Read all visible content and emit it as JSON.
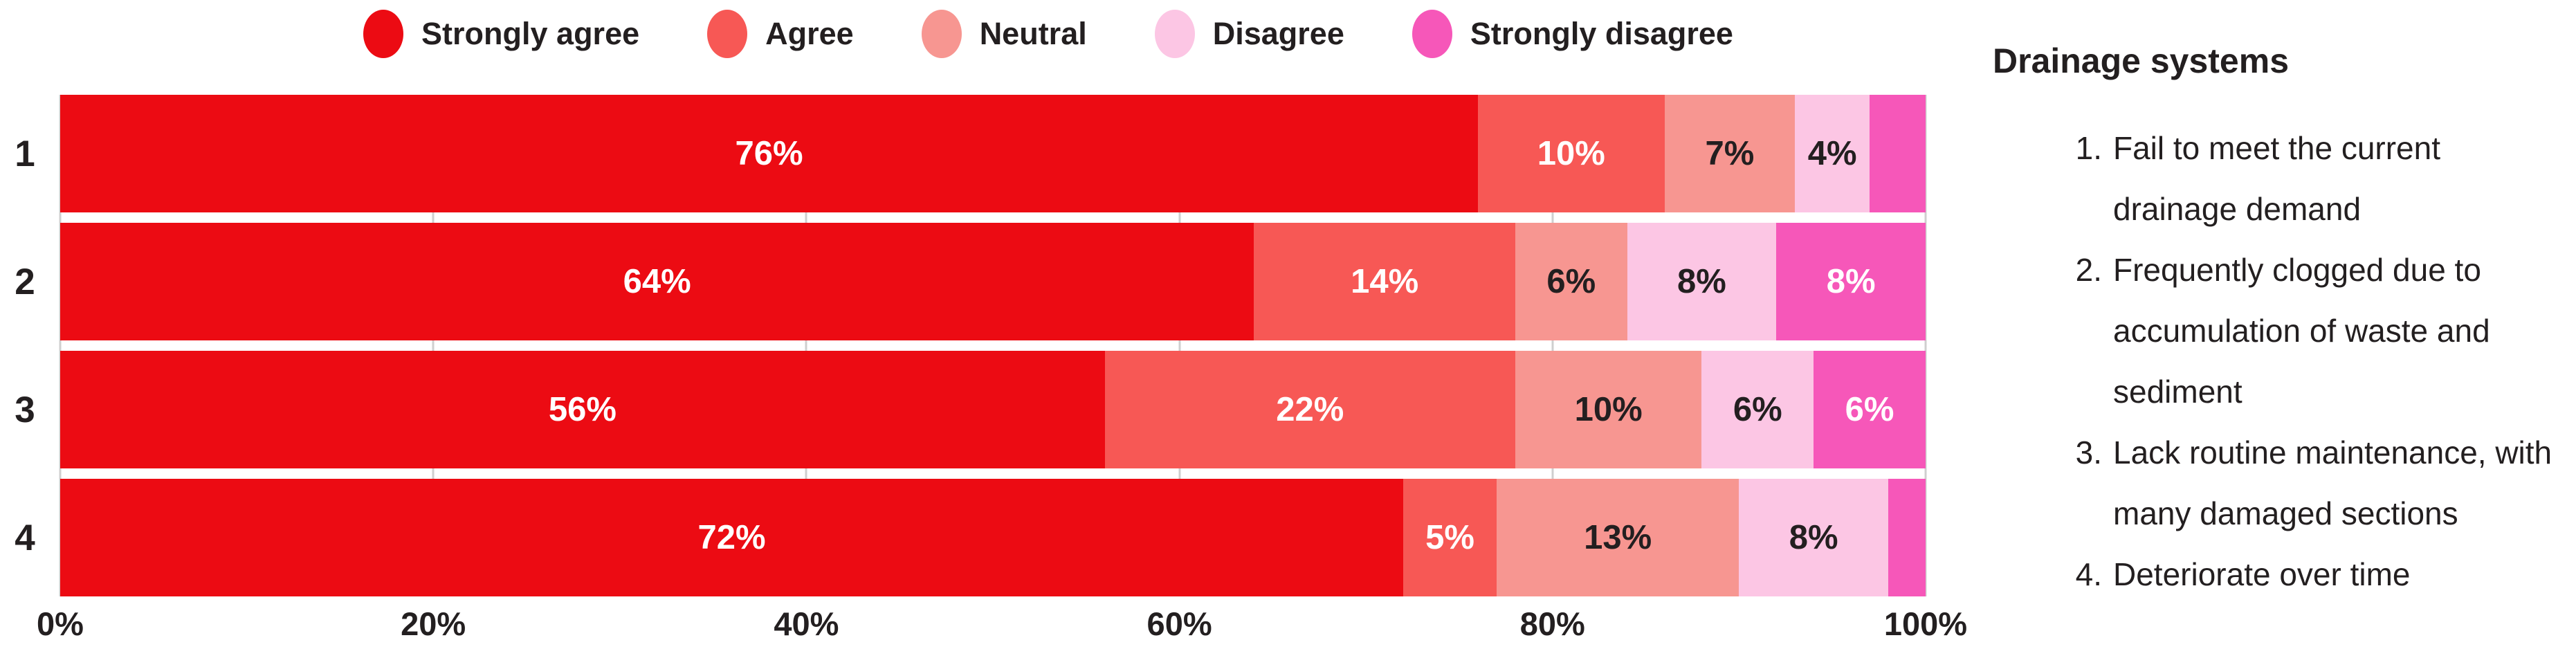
{
  "chart_data": {
    "type": "bar",
    "variant": "stacked-horizontal",
    "categories": [
      "1",
      "2",
      "3",
      "4"
    ],
    "series": [
      {
        "name": "Strongly agree",
        "color": "#ec0b13",
        "text_color": "#ffffff",
        "values": [
          76,
          64,
          56,
          72
        ],
        "labels": [
          "76%",
          "64%",
          "56%",
          "72%"
        ]
      },
      {
        "name": "Agree",
        "color": "#f75855",
        "text_color": "#ffffff",
        "values": [
          10,
          14,
          22,
          5
        ],
        "labels": [
          "10%",
          "14%",
          "22%",
          "5%"
        ]
      },
      {
        "name": "Neutral",
        "color": "#f79691",
        "text_color": "#231f20",
        "values": [
          7,
          6,
          10,
          13
        ],
        "labels": [
          "7%",
          "6%",
          "10%",
          "13%"
        ]
      },
      {
        "name": "Disagree",
        "color": "#fcc6e4",
        "text_color": "#231f20",
        "values": [
          4,
          8,
          6,
          8
        ],
        "labels": [
          "4%",
          "8%",
          "6%",
          "8%"
        ]
      },
      {
        "name": "Strongly disagree",
        "color": "#f657b9",
        "text_color": "#ffffff",
        "values": [
          3,
          8,
          6,
          2
        ],
        "labels": [
          "",
          "8%",
          "6%",
          ""
        ]
      }
    ],
    "x_ticks": [
      {
        "value": 0,
        "label": "0%"
      },
      {
        "value": 20,
        "label": "20%"
      },
      {
        "value": 40,
        "label": "40%"
      },
      {
        "value": 60,
        "label": "60%"
      },
      {
        "value": 80,
        "label": "80%"
      },
      {
        "value": 100,
        "label": "100%"
      }
    ],
    "xlim": [
      0,
      100
    ],
    "legend_position": "top",
    "grid": "vertical-light-gray"
  },
  "side_panel": {
    "title": "Drainage systems",
    "items": [
      {
        "number": "1.",
        "text": "Fail to meet the current drainage demand"
      },
      {
        "number": "2.",
        "text": "Frequently clogged due to accumulation of waste and sediment"
      },
      {
        "number": "3.",
        "text": "Lack routine maintenance, with many damaged sections"
      },
      {
        "number": "4.",
        "text": "Deteriorate over time"
      }
    ]
  },
  "colors": {
    "text": "#231f20",
    "gridline": "#cfcfcf",
    "background": "#ffffff"
  }
}
